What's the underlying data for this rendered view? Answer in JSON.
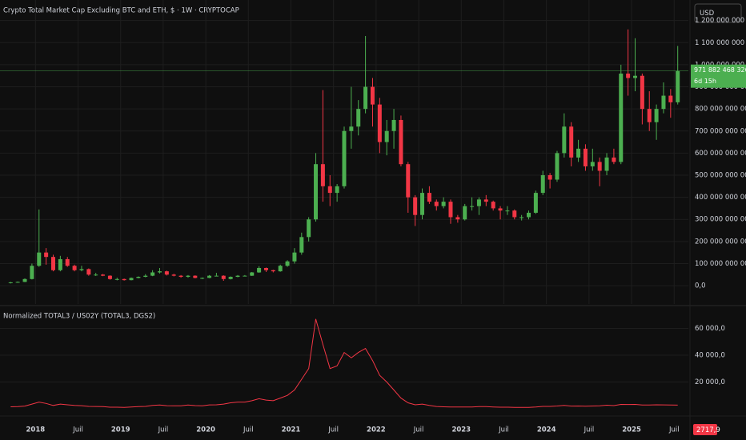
{
  "chart_data": [
    {
      "type": "candlestick",
      "title": "Crypto Total Market Cap Excluding BTC and ETH, $ · 1W · CRYPTOCAP",
      "currency": "USD",
      "x": [
        "2017-09",
        "2017-10",
        "2017-11",
        "2017-12",
        "2018-01",
        "2018-02",
        "2018-03",
        "2018-04",
        "2018-05",
        "2018-06",
        "2018-07",
        "2018-08",
        "2018-09",
        "2018-10",
        "2018-11",
        "2018-12",
        "2019-01",
        "2019-02",
        "2019-03",
        "2019-04",
        "2019-05",
        "2019-06",
        "2019-07",
        "2019-08",
        "2019-09",
        "2019-10",
        "2019-11",
        "2019-12",
        "2020-01",
        "2020-02",
        "2020-03",
        "2020-04",
        "2020-05",
        "2020-06",
        "2020-07",
        "2020-08",
        "2020-09",
        "2020-10",
        "2020-11",
        "2020-12",
        "2021-01",
        "2021-02",
        "2021-03",
        "2021-04",
        "2021-05",
        "2021-06",
        "2021-07",
        "2021-08",
        "2021-09",
        "2021-10",
        "2021-11",
        "2021-12",
        "2022-01",
        "2022-02",
        "2022-03",
        "2022-04",
        "2022-05",
        "2022-06",
        "2022-07",
        "2022-08",
        "2022-09",
        "2022-10",
        "2022-11",
        "2022-12",
        "2023-01",
        "2023-02",
        "2023-03",
        "2023-04",
        "2023-05",
        "2023-06",
        "2023-07",
        "2023-08",
        "2023-09",
        "2023-10",
        "2023-11",
        "2023-12",
        "2024-01",
        "2024-02",
        "2024-03",
        "2024-04",
        "2024-05",
        "2024-06",
        "2024-07",
        "2024-08",
        "2024-09",
        "2024-10",
        "2024-11",
        "2024-12",
        "2025-01",
        "2025-02",
        "2025-03",
        "2025-04",
        "2025-05",
        "2025-06",
        "2025-07"
      ],
      "open": [
        12000000000.0,
        15000000000.0,
        17000000000.0,
        30000000000.0,
        90000000000.0,
        150000000000.0,
        130000000000.0,
        70000000000.0,
        120000000000.0,
        90000000000.0,
        70000000000.0,
        75000000000.0,
        50000000000.0,
        50000000000.0,
        45000000000.0,
        30000000000.0,
        30000000000.0,
        25000000000.0,
        35000000000.0,
        40000000000.0,
        45000000000.0,
        60000000000.0,
        65000000000.0,
        50000000000.0,
        45000000000.0,
        40000000000.0,
        45000000000.0,
        35000000000.0,
        35000000000.0,
        45000000000.0,
        45000000000.0,
        30000000000.0,
        40000000000.0,
        45000000000.0,
        45000000000.0,
        60000000000.0,
        80000000000.0,
        70000000000.0,
        65000000000.0,
        90000000000.0,
        110000000000.0,
        150000000000.0,
        220000000000.0,
        300000000000.0,
        550000000000.0,
        450000000000.0,
        420000000000.0,
        450000000000.0,
        700000000000.0,
        720000000000.0,
        800000000000.0,
        900000000000.0,
        820000000000.0,
        650000000000.0,
        700000000000.0,
        750000000000.0,
        550000000000.0,
        400000000000.0,
        320000000000.0,
        420000000000.0,
        380000000000.0,
        360000000000.0,
        380000000000.0,
        310000000000.0,
        300000000000.0,
        360000000000.0,
        360000000000.0,
        390000000000.0,
        380000000000.0,
        350000000000.0,
        340000000000.0,
        340000000000.0,
        310000000000.0,
        310000000000.0,
        330000000000.0,
        420000000000.0,
        500000000000.0,
        480000000000.0,
        600000000000.0,
        720000000000.0,
        580000000000.0,
        620000000000.0,
        540000000000.0,
        560000000000.0,
        520000000000.0,
        580000000000.0,
        560000000000.0,
        960000000000.0,
        940000000000.0,
        950000000000.0,
        800000000000.0,
        740000000000.0,
        800000000000.0,
        860000000000.0,
        830000000000.0
      ],
      "high": [
        17000000000.0,
        19000000000.0,
        33000000000.0,
        100000000000.0,
        345000000000.0,
        170000000000.0,
        140000000000.0,
        135000000000.0,
        130000000000.0,
        95000000000.0,
        90000000000.0,
        78000000000.0,
        58000000000.0,
        53000000000.0,
        47000000000.0,
        36000000000.0,
        32000000000.0,
        37000000000.0,
        42000000000.0,
        52000000000.0,
        70000000000.0,
        80000000000.0,
        68000000000.0,
        54000000000.0,
        48000000000.0,
        48000000000.0,
        47000000000.0,
        37000000000.0,
        48000000000.0,
        58000000000.0,
        47000000000.0,
        42000000000.0,
        48000000000.0,
        48000000000.0,
        62000000000.0,
        88000000000.0,
        82000000000.0,
        72000000000.0,
        95000000000.0,
        115000000000.0,
        170000000000.0,
        240000000000.0,
        310000000000.0,
        600000000000.0,
        885000000000.0,
        500000000000.0,
        460000000000.0,
        720000000000.0,
        900000000000.0,
        840000000000.0,
        1130000000000.0,
        940000000000.0,
        850000000000.0,
        750000000000.0,
        800000000000.0,
        770000000000.0,
        560000000000.0,
        410000000000.0,
        440000000000.0,
        450000000000.0,
        390000000000.0,
        400000000000.0,
        390000000000.0,
        320000000000.0,
        370000000000.0,
        400000000000.0,
        400000000000.0,
        410000000000.0,
        385000000000.0,
        360000000000.0,
        360000000000.0,
        345000000000.0,
        320000000000.0,
        340000000000.0,
        430000000000.0,
        520000000000.0,
        510000000000.0,
        610000000000.0,
        780000000000.0,
        740000000000.0,
        660000000000.0,
        640000000000.0,
        620000000000.0,
        580000000000.0,
        600000000000.0,
        620000000000.0,
        1000000000000.0,
        1160000000000.0,
        1120000000000.0,
        960000000000.0,
        880000000000.0,
        820000000000.0,
        920000000000.0,
        890000000000.0,
        1085000000000.0
      ],
      "low": [
        10000000000.0,
        13000000000.0,
        16000000000.0,
        28000000000.0,
        85000000000.0,
        95000000000.0,
        65000000000.0,
        65000000000.0,
        85000000000.0,
        65000000000.0,
        65000000000.0,
        45000000000.0,
        44000000000.0,
        43000000000.0,
        27000000000.0,
        24000000000.0,
        23000000000.0,
        24000000000.0,
        33000000000.0,
        38000000000.0,
        43000000000.0,
        55000000000.0,
        46000000000.0,
        42000000000.0,
        36000000000.0,
        36000000000.0,
        33000000000.0,
        30000000000.0,
        34000000000.0,
        44000000000.0,
        22000000000.0,
        28000000000.0,
        38000000000.0,
        42000000000.0,
        44000000000.0,
        58000000000.0,
        62000000000.0,
        60000000000.0,
        63000000000.0,
        85000000000.0,
        100000000000.0,
        140000000000.0,
        200000000000.0,
        290000000000.0,
        380000000000.0,
        360000000000.0,
        380000000000.0,
        440000000000.0,
        620000000000.0,
        680000000000.0,
        780000000000.0,
        720000000000.0,
        600000000000.0,
        590000000000.0,
        620000000000.0,
        540000000000.0,
        330000000000.0,
        270000000000.0,
        300000000000.0,
        370000000000.0,
        340000000000.0,
        350000000000.0,
        280000000000.0,
        285000000000.0,
        295000000000.0,
        340000000000.0,
        320000000000.0,
        360000000000.0,
        340000000000.0,
        300000000000.0,
        320000000000.0,
        300000000000.0,
        295000000000.0,
        300000000000.0,
        325000000000.0,
        410000000000.0,
        440000000000.0,
        470000000000.0,
        580000000000.0,
        540000000000.0,
        560000000000.0,
        520000000000.0,
        520000000000.0,
        450000000000.0,
        500000000000.0,
        550000000000.0,
        550000000000.0,
        860000000000.0,
        880000000000.0,
        730000000000.0,
        700000000000.0,
        660000000000.0,
        780000000000.0,
        760000000000.0,
        820000000000.0
      ],
      "close": [
        15000000000.0,
        17000000000.0,
        30000000000.0,
        90000000000.0,
        150000000000.0,
        130000000000.0,
        70000000000.0,
        120000000000.0,
        90000000000.0,
        70000000000.0,
        75000000000.0,
        50000000000.0,
        50000000000.0,
        45000000000.0,
        30000000000.0,
        30000000000.0,
        25000000000.0,
        35000000000.0,
        40000000000.0,
        45000000000.0,
        60000000000.0,
        65000000000.0,
        50000000000.0,
        45000000000.0,
        40000000000.0,
        45000000000.0,
        35000000000.0,
        35000000000.0,
        45000000000.0,
        45000000000.0,
        30000000000.0,
        40000000000.0,
        45000000000.0,
        45000000000.0,
        60000000000.0,
        80000000000.0,
        70000000000.0,
        65000000000.0,
        90000000000.0,
        110000000000.0,
        150000000000.0,
        220000000000.0,
        300000000000.0,
        550000000000.0,
        450000000000.0,
        420000000000.0,
        450000000000.0,
        700000000000.0,
        720000000000.0,
        800000000000.0,
        900000000000.0,
        820000000000.0,
        650000000000.0,
        700000000000.0,
        750000000000.0,
        550000000000.0,
        400000000000.0,
        320000000000.0,
        420000000000.0,
        380000000000.0,
        360000000000.0,
        380000000000.0,
        310000000000.0,
        300000000000.0,
        360000000000.0,
        360000000000.0,
        390000000000.0,
        380000000000.0,
        350000000000.0,
        340000000000.0,
        340000000000.0,
        310000000000.0,
        310000000000.0,
        330000000000.0,
        420000000000.0,
        500000000000.0,
        480000000000.0,
        600000000000.0,
        720000000000.0,
        580000000000.0,
        620000000000.0,
        540000000000.0,
        560000000000.0,
        520000000000.0,
        580000000000.0,
        560000000000.0,
        960000000000.0,
        940000000000.0,
        950000000000.0,
        800000000000.0,
        740000000000.0,
        800000000000.0,
        860000000000.0,
        830000000000.0,
        971882468326
      ],
      "last_label": "971 882 468 326,0",
      "countdown": "6d 15h",
      "up_color": "#4caf50",
      "down_color": "#f23645",
      "xlim": [
        "2017-08",
        "2025-09"
      ],
      "xticks": [
        {
          "value": "2018-01",
          "label": "2018"
        },
        {
          "value": "2018-07",
          "label": "Juil"
        },
        {
          "value": "2019-01",
          "label": "2019"
        },
        {
          "value": "2019-07",
          "label": "Juil"
        },
        {
          "value": "2020-01",
          "label": "2020"
        },
        {
          "value": "2020-07",
          "label": "Juil"
        },
        {
          "value": "2021-01",
          "label": "2021"
        },
        {
          "value": "2021-07",
          "label": "Juil"
        },
        {
          "value": "2022-01",
          "label": "2022"
        },
        {
          "value": "2022-07",
          "label": "Juil"
        },
        {
          "value": "2023-01",
          "label": "2023"
        },
        {
          "value": "2023-07",
          "label": "Juil"
        },
        {
          "value": "2024-01",
          "label": "2024"
        },
        {
          "value": "2024-07",
          "label": "Juil"
        },
        {
          "value": "2025-01",
          "label": "2025"
        },
        {
          "value": "2025-07",
          "label": "Juil"
        }
      ],
      "ylim": [
        -83000000000.0,
        1293000000000.0
      ],
      "yticks": [
        {
          "value": 0,
          "label": "0,0"
        },
        {
          "value": 100000000000.0,
          "label": "100 000 000 000,0"
        },
        {
          "value": 200000000000.0,
          "label": "200 000 000 000,0"
        },
        {
          "value": 300000000000.0,
          "label": "300 000 000 000,0"
        },
        {
          "value": 400000000000.0,
          "label": "400 000 000 000,0"
        },
        {
          "value": 500000000000.0,
          "label": "500 000 000 000,0"
        },
        {
          "value": 600000000000.0,
          "label": "600 000 000 000,0"
        },
        {
          "value": 700000000000.0,
          "label": "700 000 000 000,0"
        },
        {
          "value": 800000000000.0,
          "label": "800 000 000 000,0"
        },
        {
          "value": 900000000000.0,
          "label": "900 000 000 000,0"
        },
        {
          "value": 1000000000000.0,
          "label": "1 000 000 000 000,0"
        },
        {
          "value": 1100000000000.0,
          "label": "1 100 000 000 000,0"
        },
        {
          "value": 1200000000000.0,
          "label": "1 200 000 000 000,0"
        }
      ],
      "grid": true
    },
    {
      "type": "line",
      "title": "Normalized TOTAL3 / US02Y (TOTAL3, DGS2)",
      "x": [
        "2017-09",
        "2017-10",
        "2017-11",
        "2017-12",
        "2018-01",
        "2018-02",
        "2018-03",
        "2018-04",
        "2018-05",
        "2018-06",
        "2018-07",
        "2018-08",
        "2018-09",
        "2018-10",
        "2018-11",
        "2018-12",
        "2019-01",
        "2019-02",
        "2019-03",
        "2019-04",
        "2019-05",
        "2019-06",
        "2019-07",
        "2019-08",
        "2019-09",
        "2019-10",
        "2019-11",
        "2019-12",
        "2020-01",
        "2020-02",
        "2020-03",
        "2020-04",
        "2020-05",
        "2020-06",
        "2020-07",
        "2020-08",
        "2020-09",
        "2020-10",
        "2020-11",
        "2020-12",
        "2021-01",
        "2021-02",
        "2021-03",
        "2021-04",
        "2021-05",
        "2021-06",
        "2021-07",
        "2021-08",
        "2021-09",
        "2021-10",
        "2021-11",
        "2021-12",
        "2022-01",
        "2022-02",
        "2022-03",
        "2022-04",
        "2022-05",
        "2022-06",
        "2022-07",
        "2022-08",
        "2022-09",
        "2022-10",
        "2022-11",
        "2022-12",
        "2023-01",
        "2023-02",
        "2023-03",
        "2023-04",
        "2023-05",
        "2023-06",
        "2023-07",
        "2023-08",
        "2023-09",
        "2023-10",
        "2023-11",
        "2023-12",
        "2024-01",
        "2024-02",
        "2024-03",
        "2024-04",
        "2024-05",
        "2024-06",
        "2024-07",
        "2024-08",
        "2024-09",
        "2024-10",
        "2024-11",
        "2024-12",
        "2025-01",
        "2025-02",
        "2025-03",
        "2025-04",
        "2025-05",
        "2025-06",
        "2025-07"
      ],
      "series": [
        {
          "name": "Normalized TOTAL3 / US02Y",
          "color": "#f23645",
          "values": [
            1500,
            1600,
            2000,
            3500,
            5000,
            4000,
            2500,
            3500,
            3000,
            2500,
            2300,
            1800,
            1700,
            1600,
            1200,
            1200,
            1000,
            1300,
            1600,
            1800,
            2500,
            2800,
            2300,
            2200,
            2200,
            2800,
            2400,
            2200,
            2900,
            3000,
            3500,
            4500,
            5000,
            5000,
            6000,
            7500,
            6500,
            6000,
            8000,
            10000,
            14000,
            22000,
            30000,
            67000,
            48000,
            30000,
            32000,
            42000,
            38000,
            42000,
            45000,
            36000,
            25000,
            20000,
            14000,
            8000,
            4500,
            3000,
            3500,
            2500,
            1700,
            1500,
            1300,
            1300,
            1400,
            1400,
            1600,
            1600,
            1400,
            1200,
            1200,
            1100,
            1100,
            1100,
            1400,
            1800,
            1800,
            2100,
            2500,
            2000,
            2100,
            1900,
            2100,
            2200,
            2700,
            2400,
            3300,
            3200,
            3300,
            2800,
            2800,
            3000,
            2900,
            2800,
            2717.9
          ],
          "value_labels": [
            null,
            null,
            null,
            null,
            null,
            null,
            null,
            null,
            null,
            null,
            null,
            null,
            null,
            null,
            null,
            null,
            null,
            null,
            null,
            null,
            null,
            null,
            null,
            null,
            null,
            null,
            null,
            null,
            null,
            null,
            null,
            null,
            null,
            null,
            null,
            null,
            null,
            null,
            null,
            null,
            null,
            null,
            null,
            null,
            null,
            null,
            null,
            null,
            null,
            null,
            null,
            null,
            null,
            null,
            null,
            null,
            null,
            null,
            null,
            null,
            null,
            null,
            null,
            null,
            null,
            null,
            null,
            null,
            null,
            null,
            null,
            null,
            null,
            null,
            null,
            null,
            null,
            null,
            null,
            null,
            null,
            null,
            null,
            null,
            null,
            null,
            null,
            null,
            null,
            null,
            null,
            null,
            null,
            null,
            "2717,9"
          ]
        }
      ],
      "xlim": [
        "2017-08",
        "2025-09"
      ],
      "ylim": [
        -4180,
        76400
      ],
      "yticks": [
        {
          "value": 20000,
          "label": "20 000,0"
        },
        {
          "value": 40000,
          "label": "40 000,0"
        },
        {
          "value": 60000,
          "label": "60 000,0"
        }
      ],
      "grid": true
    }
  ]
}
